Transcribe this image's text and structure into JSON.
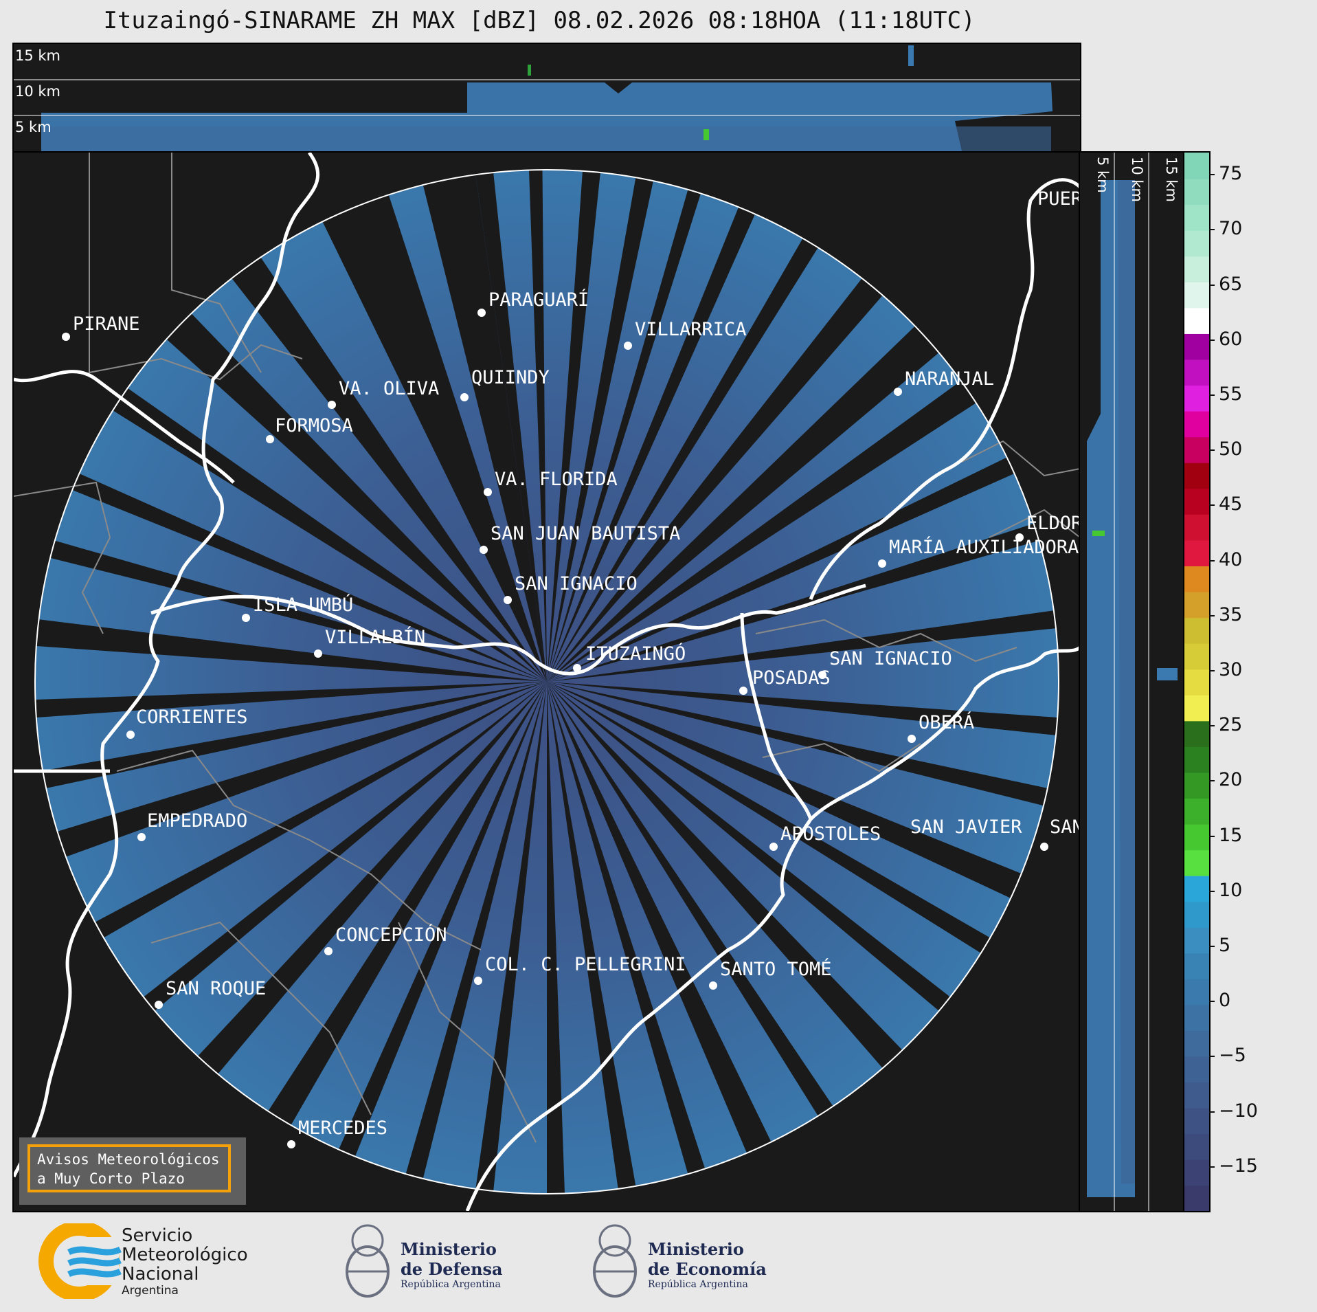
{
  "title": "Ituzaingó-SINARAME ZH MAX [dBZ] 08.02.2026 08:18HOA (11:18UTC)",
  "top_panel": {
    "levels": [
      "15 km",
      "10 km",
      "5 km"
    ]
  },
  "side_panel": {
    "levels": [
      "5 km",
      "10 km",
      "15 km"
    ]
  },
  "radar_site": "ITUZAINGÓ",
  "cities": [
    {
      "name": "PIRANE"
    },
    {
      "name": "PARAGUARÍ"
    },
    {
      "name": "VILLARRICA"
    },
    {
      "name": "QUIINDY"
    },
    {
      "name": "VA. OLIVA"
    },
    {
      "name": "FORMOSA"
    },
    {
      "name": "NARANJAL"
    },
    {
      "name": "VA. FLORIDA"
    },
    {
      "name": "SAN JUAN BAUTISTA"
    },
    {
      "name": "SAN IGNACIO"
    },
    {
      "name": "ISLA UMBÚ"
    },
    {
      "name": "VILLALBÍN"
    },
    {
      "name": "CORRIENTES"
    },
    {
      "name": "SAN IGNACIO"
    },
    {
      "name": "POSADAS"
    },
    {
      "name": "OBERÁ"
    },
    {
      "name": "EMPEDRADO"
    },
    {
      "name": "APÓSTOLES"
    },
    {
      "name": "SAN JAVIER"
    },
    {
      "name": "SAN"
    },
    {
      "name": "CONCEPCIÓN"
    },
    {
      "name": "COL. C. PELLEGRINI"
    },
    {
      "name": "SANTO TOMÉ"
    },
    {
      "name": "SAN ROQUE"
    },
    {
      "name": "MERCEDES"
    },
    {
      "name": "MARÍA AUXILIADORA"
    },
    {
      "name": "ELDORADO"
    },
    {
      "name": "PUERTO"
    }
  ],
  "colorbar": {
    "unit": "dBZ",
    "ticks": [
      "75",
      "70",
      "65",
      "60",
      "55",
      "50",
      "45",
      "40",
      "35",
      "30",
      "25",
      "20",
      "15",
      "10",
      "5",
      "0",
      "−5",
      "−10",
      "−15"
    ],
    "colors": [
      "#3a3a6b",
      "#3c4274",
      "#3d4a7c",
      "#3e5284",
      "#3f5a8c",
      "#3f6294",
      "#3e6a9c",
      "#3c72a4",
      "#3a7aac",
      "#3882b4",
      "#3a8ec0",
      "#2f99cc",
      "#2aa6d8",
      "#57e040",
      "#46c830",
      "#3cb02a",
      "#339824",
      "#2b8020",
      "#2a701c",
      "#f0ee50",
      "#e4dc40",
      "#d6cc38",
      "#ccbe30",
      "#d4a02a",
      "#de8820",
      "#e01840",
      "#d01030",
      "#b80020",
      "#a00010",
      "#c80060",
      "#e000a0",
      "#e020e0",
      "#c010c0",
      "#a000a0",
      "#ffffff",
      "#e0f5ec",
      "#c8eedc",
      "#b0e8d0",
      "#a0e4c8",
      "#90dcbf",
      "#80d6b6"
    ],
    "vmin": -19,
    "vmax": 77
  },
  "warning": {
    "line1": "Avisos Meteorológicos",
    "line2": "a Muy Corto Plazo"
  },
  "logos": {
    "smn": {
      "line1": "Servicio",
      "line2": "Meteorológico",
      "line3": "Nacional",
      "line4": "Argentina"
    },
    "defensa": {
      "line1": "Ministerio",
      "line2": "de Defensa",
      "line3": "República Argentina"
    },
    "economia": {
      "line1": "Ministerio",
      "line2": "de Economía",
      "line3": "República Argentina"
    }
  },
  "colors": {
    "background": "#1a1a1a",
    "echo": "#3a73a8",
    "echo_dark": "#3d5a8c",
    "border": "#ffffff",
    "province": "#888888"
  }
}
